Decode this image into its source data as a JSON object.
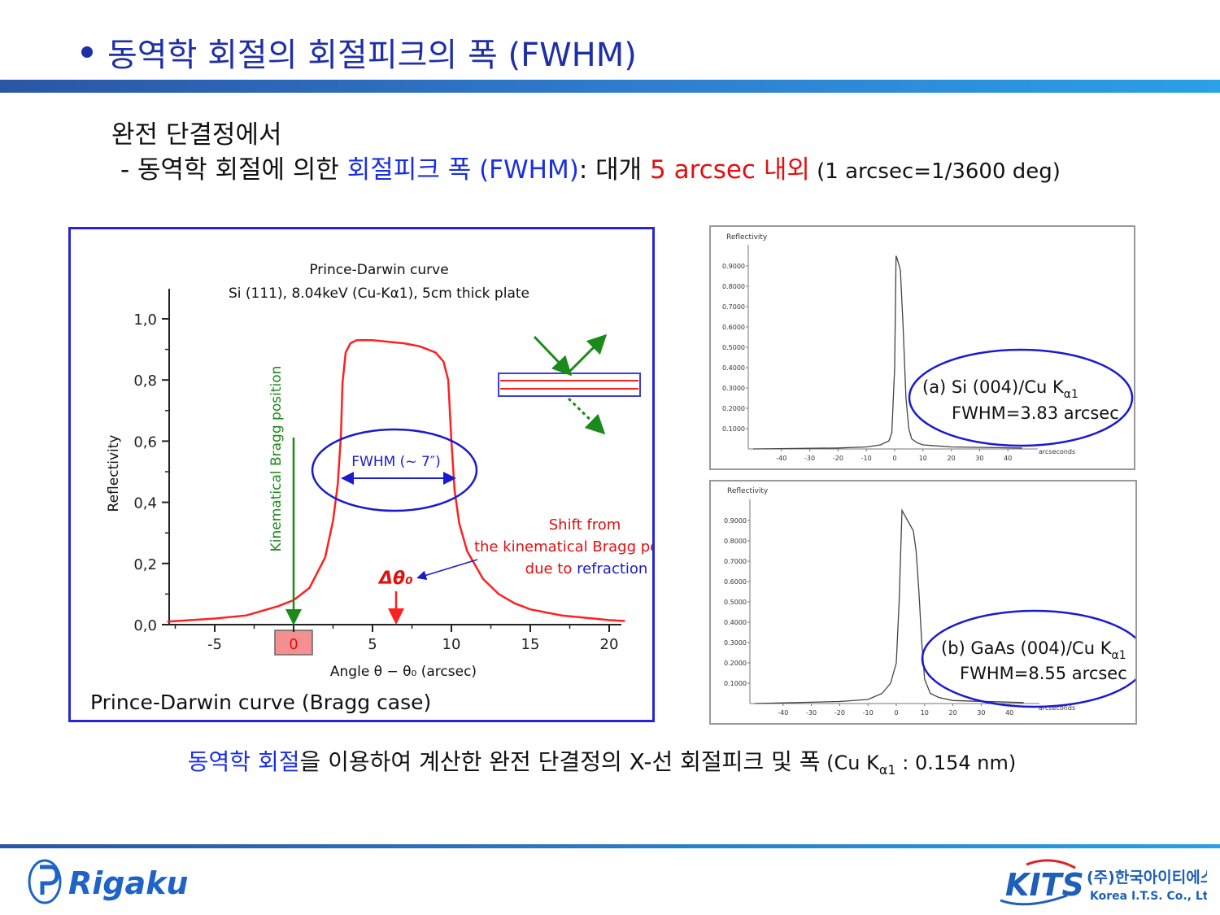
{
  "header": {
    "title": "동역학 회절의 회절피크의 폭 (FWHM)"
  },
  "intro": {
    "line1": "완전 단결정에서",
    "line2_prefix": "- 동역학 회절에 의한 ",
    "line2_highlight": "회절피크 폭 (FWHM)",
    "line2_mid": ": 대개 ",
    "line2_value": "5 arcsec 내외",
    "line2_note": " (1 arcsec=1/3600 deg)"
  },
  "main_chart": {
    "title_line1": "Prince-Darwin curve",
    "title_line2": "Si (111), 8.04keV (Cu-Kα1), 5cm thick plate",
    "ylabel": "Reflectivity",
    "xlabel": "Angle θ − θ₀ (arcsec)",
    "caption": "Prince-Darwin curve (Bragg case)",
    "kinematical_label": "Kinematical Bragg position",
    "fwhm_label": "FWHM (~ 7″)",
    "shift_line1": "Shift from",
    "shift_line2": "the kinematical Bragg position",
    "shift_line3_prefix": "due to ",
    "shift_line3_word": "refraction",
    "delta_label": "Δθ₀",
    "highlight_tick": "0",
    "colors": {
      "curve": "#ff2020",
      "kinematical": "#1a8a1a",
      "annotation": "#1a1ad0",
      "shift_text": "#e01010"
    }
  },
  "chart_data": [
    {
      "type": "line",
      "title": "Prince-Darwin curve",
      "subtitle": "Si (111), 8.04keV (Cu-Kα1), 5cm thick plate",
      "xlabel": "Angle θ − θ₀ (arcsec)",
      "ylabel": "Reflectivity",
      "xlim": [
        -8,
        21
      ],
      "ylim": [
        0,
        1.0
      ],
      "xticks": [
        "-5",
        "0",
        "5",
        "10",
        "15",
        "20"
      ],
      "yticks": [
        "0,0",
        "0,2",
        "0,4",
        "0,6",
        "0,8",
        "1,0"
      ],
      "x": [
        -8,
        -5,
        -3,
        -1,
        0,
        1,
        2,
        2.5,
        2.8,
        3.0,
        3.1,
        3.3,
        3.6,
        4,
        5,
        6,
        7,
        8,
        9,
        9.5,
        9.8,
        10.0,
        10.2,
        10.5,
        11,
        12,
        13,
        14,
        15,
        16,
        17,
        18,
        19,
        20,
        21
      ],
      "y": [
        0.01,
        0.02,
        0.03,
        0.06,
        0.08,
        0.12,
        0.22,
        0.34,
        0.46,
        0.62,
        0.79,
        0.89,
        0.92,
        0.93,
        0.93,
        0.925,
        0.92,
        0.91,
        0.89,
        0.86,
        0.8,
        0.6,
        0.44,
        0.33,
        0.24,
        0.15,
        0.1,
        0.07,
        0.05,
        0.04,
        0.03,
        0.025,
        0.02,
        0.015,
        0.012
      ]
    },
    {
      "type": "line",
      "title": "(a) Si (004)/Cu Kα1",
      "ylabel": "Reflectivity",
      "xlabel": "arcseconds",
      "xlim": [
        -50,
        45
      ],
      "ylim": [
        0,
        1.0
      ],
      "xticks": [
        "-40",
        "-30",
        "-20",
        "-10",
        "0",
        "10",
        "20",
        "30",
        "40"
      ],
      "yticks": [
        "0.1000",
        "0.2000",
        "0.3000",
        "0.4000",
        "0.5000",
        "0.6000",
        "0.7000",
        "0.8000",
        "0.9000"
      ],
      "x": [
        -50,
        -20,
        -10,
        -5,
        -2,
        -1,
        0,
        0.5,
        1,
        2,
        3,
        4,
        5,
        6,
        8,
        10,
        20,
        45
      ],
      "y": [
        0.0,
        0.005,
        0.01,
        0.02,
        0.04,
        0.08,
        0.4,
        0.95,
        0.93,
        0.88,
        0.6,
        0.25,
        0.1,
        0.05,
        0.03,
        0.02,
        0.01,
        0.005
      ],
      "annotation": "FWHM=3.83 arcsec"
    },
    {
      "type": "line",
      "title": "(b) GaAs (004)/Cu Kα1",
      "ylabel": "Reflectivity",
      "xlabel": "arcseconds",
      "xlim": [
        -50,
        45
      ],
      "ylim": [
        0,
        1.0
      ],
      "xticks": [
        "-40",
        "-30",
        "-20",
        "-10",
        "0",
        "10",
        "20",
        "30",
        "40"
      ],
      "yticks": [
        "0.1000",
        "0.2000",
        "0.3000",
        "0.4000",
        "0.5000",
        "0.6000",
        "0.7000",
        "0.8000",
        "0.9000"
      ],
      "x": [
        -50,
        -20,
        -10,
        -5,
        -2,
        0,
        1,
        2,
        4,
        6,
        7,
        8,
        9,
        10,
        12,
        15,
        20,
        45
      ],
      "y": [
        0.0,
        0.01,
        0.02,
        0.05,
        0.1,
        0.2,
        0.5,
        0.95,
        0.9,
        0.85,
        0.75,
        0.55,
        0.3,
        0.12,
        0.05,
        0.03,
        0.015,
        0.005
      ],
      "annotation": "FWHM=8.55 arcsec"
    }
  ],
  "panel_a": {
    "ylabel": "Reflectivity",
    "xlabel": "arcseconds",
    "label_prefix": "(a) Si (004)/Cu K",
    "label_sub": "α1",
    "fwhm": "FWHM=3.83 arcsec"
  },
  "panel_b": {
    "ylabel": "Reflectivity",
    "xlabel": "arcseconds",
    "label_prefix": "(b) GaAs (004)/Cu K",
    "label_sub": "α1",
    "fwhm": "FWHM=8.55 arcsec"
  },
  "caption": {
    "blue_part": "동역학 회절",
    "rest": "을 이용하여 계산한 완전 단결정의 X-선 회절피크 및 폭",
    "note_prefix": " (Cu K",
    "note_sub": "α1",
    "note_suffix": " : 0.154 nm)"
  },
  "footer": {
    "rigaku": "Rigaku",
    "kits": "KITS",
    "kits_korean": "(주)한국아이티에스",
    "kits_english": "Korea I.T.S. Co., Ltd.",
    "rigaku_color": "#1e63c8",
    "kits_color": "#1e5fb8"
  }
}
